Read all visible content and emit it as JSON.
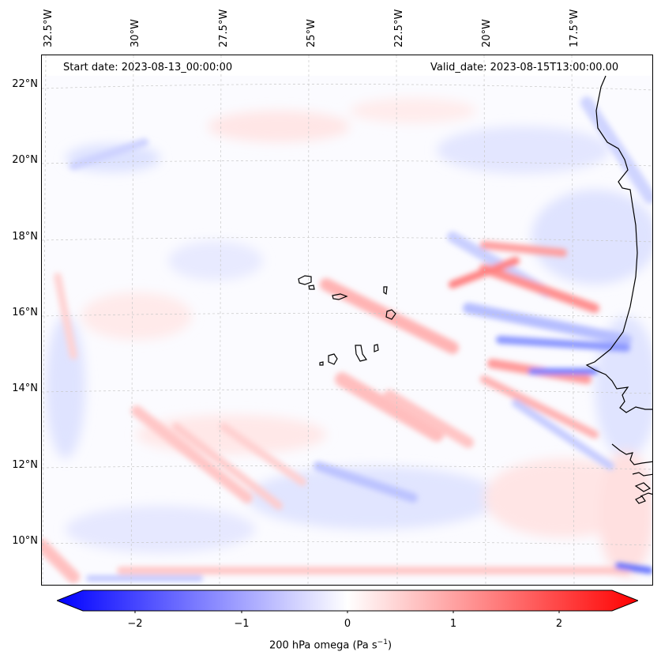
{
  "map": {
    "start_date": "Start date: 2023-08-13_00:00:00",
    "valid_date": "Valid_date: 2023-08-15T13:00:00.00",
    "lon_labels": [
      "32.5°W",
      "30°W",
      "27.5°W",
      "25°W",
      "22.5°W",
      "20°W",
      "17.5°W"
    ],
    "lat_labels": [
      "22°N",
      "20°N",
      "18°N",
      "16°N",
      "14°N",
      "12°N",
      "10°N"
    ],
    "variable": "200 hPa omega (Pa s",
    "variable_unit_exp": "−1",
    "variable_close": ")",
    "colormap": "bwr",
    "colors": {
      "negative": "#0000ff",
      "zero": "#ffffff",
      "positive": "#ff0000",
      "coastline": "#000000"
    }
  },
  "colorbar": {
    "range": [
      -2.5,
      2.5
    ],
    "ticks": [
      "−2",
      "−1",
      "0",
      "1",
      "2"
    ],
    "tick_values": [
      -2,
      -1,
      0,
      1,
      2
    ]
  }
}
